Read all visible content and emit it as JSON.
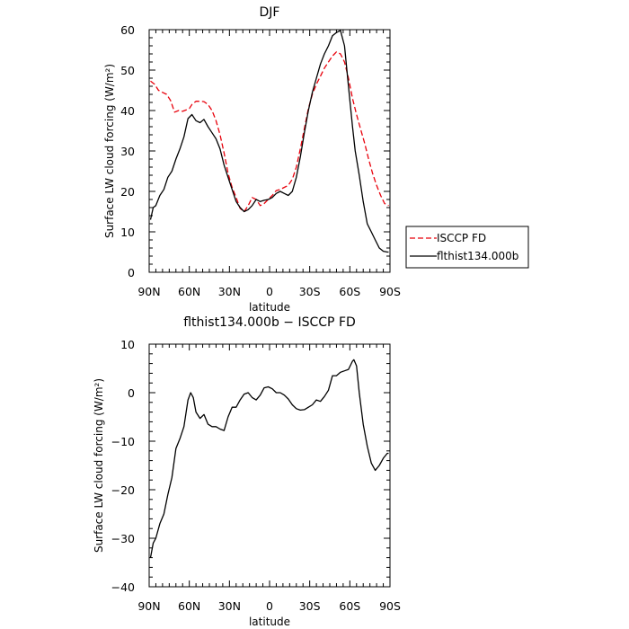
{
  "chart_data": [
    {
      "type": "line",
      "title": "DJF",
      "xlabel": "latitude",
      "ylabel": "Surface LW cloud forcing (W/m²)",
      "xlim": [
        90,
        -90
      ],
      "ylim": [
        0,
        60
      ],
      "xticks": [
        {
          "value": 90,
          "label": "90N"
        },
        {
          "value": 60,
          "label": "60N"
        },
        {
          "value": 30,
          "label": "30N"
        },
        {
          "value": 0,
          "label": "0"
        },
        {
          "value": -30,
          "label": "30S"
        },
        {
          "value": -60,
          "label": "60S"
        },
        {
          "value": -90,
          "label": "90S"
        }
      ],
      "yticks": [
        0,
        10,
        20,
        30,
        40,
        50,
        60
      ],
      "legend_position": "outside-right",
      "series": [
        {
          "name": "ISCCP FD",
          "color": "#e8000b",
          "style": "dashed",
          "x": [
            89,
            86,
            83,
            80,
            77,
            74,
            71,
            68,
            65,
            62,
            60,
            58,
            55,
            52,
            49,
            46,
            43,
            40,
            37,
            34,
            31,
            28,
            25,
            22,
            19,
            16,
            13,
            10,
            7,
            4,
            1,
            -2,
            -5,
            -8,
            -11,
            -14,
            -17,
            -20,
            -23,
            -26,
            -29,
            -32,
            -35,
            -38,
            -41,
            -44,
            -47,
            -50,
            -53,
            -56,
            -59,
            -62,
            -65,
            -68,
            -71,
            -74,
            -77,
            -80,
            -83,
            -86,
            -89
          ],
          "y": [
            47.3,
            46.5,
            45.0,
            44.5,
            44.0,
            42.5,
            39.6,
            40.0,
            39.8,
            40.2,
            40.5,
            41.5,
            42.3,
            42.3,
            42.2,
            41.5,
            40.0,
            37.5,
            34.0,
            29.5,
            24.5,
            21.0,
            18.5,
            15.8,
            15.0,
            16.5,
            18.5,
            18.0,
            16.5,
            17.0,
            18.0,
            19.0,
            20.2,
            20.5,
            21.0,
            21.5,
            23.0,
            26.0,
            30.5,
            35.5,
            40.5,
            44.0,
            46.5,
            48.5,
            50.5,
            52.0,
            53.5,
            54.5,
            54.0,
            52.0,
            48.0,
            43.0,
            39.0,
            35.5,
            32.0,
            28.0,
            24.5,
            21.5,
            19.0,
            17.0,
            16.5
          ]
        },
        {
          "name": "flthist134.000b",
          "color": "#000000",
          "style": "solid",
          "x": [
            89,
            87,
            85,
            82,
            79,
            76,
            73,
            70,
            67,
            64,
            61,
            58,
            55,
            52,
            49,
            46,
            43,
            40,
            37,
            34,
            31,
            28,
            25,
            22,
            19,
            16,
            13,
            10,
            7,
            4,
            1,
            -2,
            -5,
            -8,
            -11,
            -14,
            -17,
            -20,
            -23,
            -26,
            -29,
            -32,
            -35,
            -38,
            -41,
            -44,
            -47,
            -50,
            -53,
            -56,
            -59,
            -62,
            -64,
            -67,
            -70,
            -73,
            -76,
            -79,
            -82,
            -85,
            -88,
            -89
          ],
          "y": [
            13.0,
            16.0,
            16.5,
            19.0,
            20.5,
            23.5,
            25.0,
            28.0,
            30.5,
            33.5,
            38.0,
            39.0,
            37.5,
            37.0,
            37.8,
            36.0,
            34.5,
            33.0,
            30.5,
            26.5,
            23.5,
            20.5,
            17.5,
            16.0,
            15.0,
            15.5,
            16.5,
            18.0,
            17.5,
            17.8,
            18.0,
            18.5,
            19.5,
            20.0,
            19.5,
            19.0,
            20.0,
            23.5,
            28.5,
            34.5,
            40.0,
            44.5,
            48.0,
            51.5,
            54.0,
            56.0,
            58.5,
            59.3,
            59.8,
            56.0,
            46.0,
            36.0,
            30.0,
            24.0,
            17.5,
            12.0,
            10.0,
            8.0,
            6.0,
            5.2,
            5.0,
            5.0
          ]
        }
      ]
    },
    {
      "type": "line",
      "title": "flthist134.000b − ISCCP FD",
      "xlabel": "latitude",
      "ylabel": "Surface LW cloud forcing (W/m²)",
      "xlim": [
        90,
        -90
      ],
      "ylim": [
        -40,
        10
      ],
      "xticks": [
        {
          "value": 90,
          "label": "90N"
        },
        {
          "value": 60,
          "label": "60N"
        },
        {
          "value": 30,
          "label": "30N"
        },
        {
          "value": 0,
          "label": "0"
        },
        {
          "value": -30,
          "label": "30S"
        },
        {
          "value": -60,
          "label": "60S"
        },
        {
          "value": -90,
          "label": "90S"
        }
      ],
      "yticks": [
        -40,
        -30,
        -20,
        -10,
        0,
        10
      ],
      "series": [
        {
          "color": "#000000",
          "style": "solid",
          "x": [
            89,
            87,
            85,
            82,
            79,
            76,
            73,
            70,
            67,
            64,
            61,
            59,
            57,
            55,
            52,
            49,
            46,
            43,
            40,
            37,
            34,
            31,
            28,
            25,
            22,
            19,
            16,
            13,
            10,
            7,
            4,
            1,
            -2,
            -5,
            -8,
            -11,
            -14,
            -17,
            -20,
            -23,
            -26,
            -29,
            -32,
            -35,
            -38,
            -41,
            -44,
            -47,
            -50,
            -53,
            -56,
            -59,
            -62,
            -63,
            -65,
            -67,
            -70,
            -73,
            -76,
            -79,
            -82,
            -85,
            -88,
            -89
          ],
          "y": [
            -34.0,
            -31.0,
            -30.0,
            -27.0,
            -25.0,
            -21.0,
            -17.5,
            -11.5,
            -9.5,
            -7.0,
            -1.5,
            0.0,
            -1.0,
            -4.0,
            -5.3,
            -4.5,
            -6.5,
            -7.0,
            -7.0,
            -7.5,
            -7.8,
            -5.0,
            -3.0,
            -3.0,
            -1.5,
            -0.3,
            0.0,
            -1.0,
            -1.5,
            -0.5,
            1.0,
            1.2,
            0.8,
            0.0,
            0.0,
            -0.5,
            -1.3,
            -2.5,
            -3.3,
            -3.6,
            -3.5,
            -3.0,
            -2.5,
            -1.5,
            -1.8,
            -0.8,
            0.5,
            3.5,
            3.5,
            4.2,
            4.5,
            4.8,
            6.5,
            6.8,
            5.5,
            0.0,
            -6.5,
            -11.0,
            -14.5,
            -16.0,
            -15.0,
            -13.5,
            -12.5,
            -12.5
          ]
        }
      ]
    }
  ]
}
